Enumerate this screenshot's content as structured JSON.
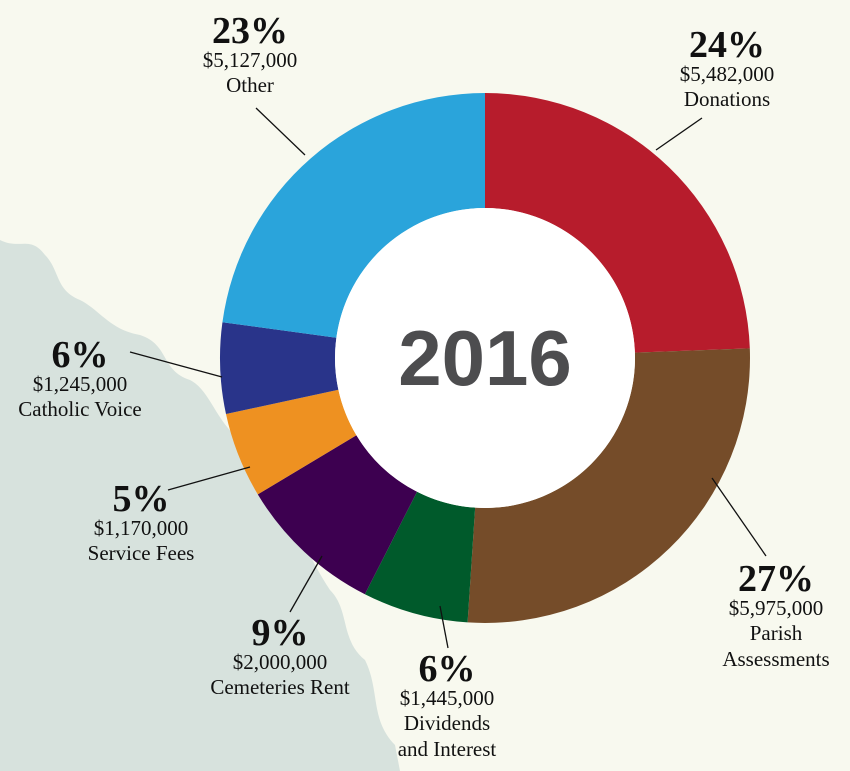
{
  "chart_data": {
    "type": "donut",
    "center_label": "2016",
    "categories": [
      "Donations",
      "Parish Assessments",
      "Dividends and Interest",
      "Cemeteries Rent",
      "Service Fees",
      "Catholic Voice",
      "Other"
    ],
    "values": [
      5482000,
      5975000,
      1445000,
      2000000,
      1170000,
      1245000,
      5127000
    ],
    "value_labels": [
      "$5,482,000",
      "$5,975,000",
      "$1,445,000",
      "$2,000,000",
      "$1,170,000",
      "$1,245,000",
      "$5,127,000"
    ],
    "percent_labels": [
      "24%",
      "27%",
      "6%",
      "9%",
      "5%",
      "6%",
      "23%"
    ],
    "colors": [
      "#b71c2c",
      "#754c29",
      "#005a2b",
      "#3d0050",
      "#ee9121",
      "#29348a",
      "#2aa4db"
    ]
  }
}
